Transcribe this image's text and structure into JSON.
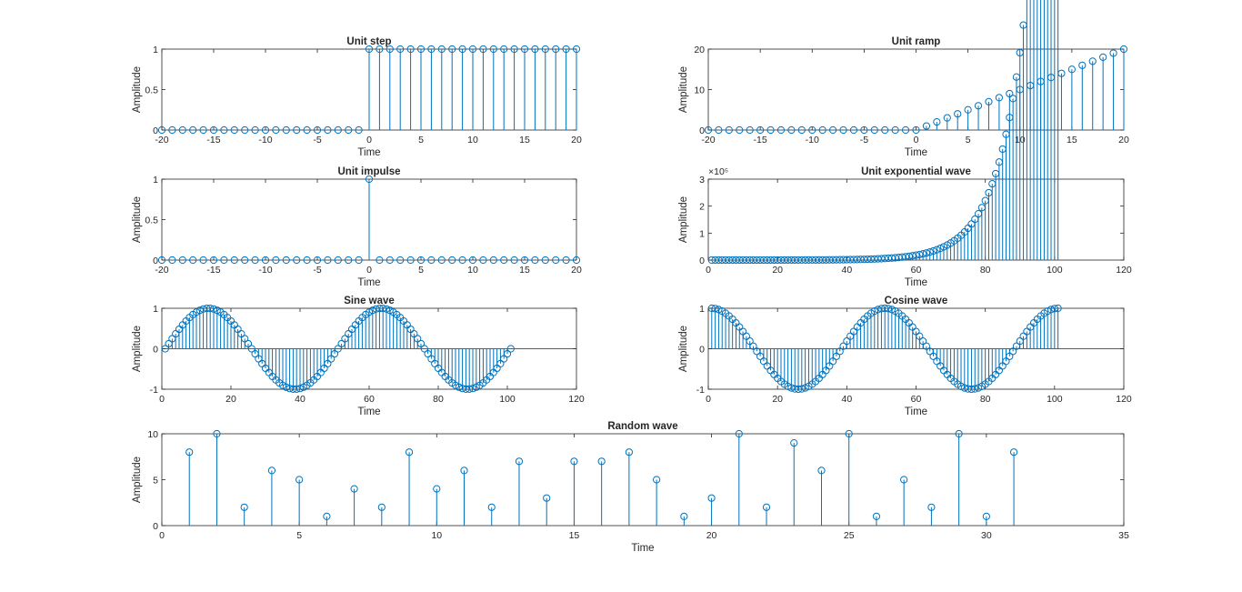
{
  "figure": {
    "background": "#ffffff"
  },
  "colors": {
    "stem": "#0072bd",
    "axis": "#262626"
  },
  "chart_data": [
    {
      "id": "step",
      "type": "stem",
      "title": "Unit step",
      "xlabel": "Time",
      "ylabel": "Amplitude",
      "xlim": [
        -20,
        20
      ],
      "ylim": [
        0,
        1
      ],
      "xticks": [
        -20,
        -15,
        -10,
        -5,
        0,
        5,
        10,
        15,
        20
      ],
      "xtick_labels": [
        "-20",
        "-15",
        "-10",
        "-5",
        "0",
        "5",
        "10",
        "15",
        "20"
      ],
      "yticks": [
        0,
        0.5,
        1
      ],
      "ytick_labels": [
        "0",
        "0.5",
        "1"
      ],
      "x": [
        -20,
        -19,
        -18,
        -17,
        -16,
        -15,
        -14,
        -13,
        -12,
        -11,
        -10,
        -9,
        -8,
        -7,
        -6,
        -5,
        -4,
        -3,
        -2,
        -1,
        0,
        1,
        2,
        3,
        4,
        5,
        6,
        7,
        8,
        9,
        10,
        11,
        12,
        13,
        14,
        15,
        16,
        17,
        18,
        19,
        20
      ],
      "y": [
        0,
        0,
        0,
        0,
        0,
        0,
        0,
        0,
        0,
        0,
        0,
        0,
        0,
        0,
        0,
        0,
        0,
        0,
        0,
        0,
        1,
        1,
        1,
        1,
        1,
        1,
        1,
        1,
        1,
        1,
        1,
        1,
        1,
        1,
        1,
        1,
        1,
        1,
        1,
        1,
        1
      ]
    },
    {
      "id": "ramp",
      "type": "stem",
      "title": "Unit ramp",
      "xlabel": "Time",
      "ylabel": "Amplitude",
      "xlim": [
        -20,
        20
      ],
      "ylim": [
        0,
        20
      ],
      "xticks": [
        -20,
        -15,
        -10,
        -5,
        0,
        5,
        10,
        15,
        20
      ],
      "xtick_labels": [
        "-20",
        "-15",
        "-10",
        "-5",
        "0",
        "5",
        "10",
        "15",
        "20"
      ],
      "yticks": [
        0,
        10,
        20
      ],
      "ytick_labels": [
        "0",
        "10",
        "20"
      ],
      "x": [
        -20,
        -19,
        -18,
        -17,
        -16,
        -15,
        -14,
        -13,
        -12,
        -11,
        -10,
        -9,
        -8,
        -7,
        -6,
        -5,
        -4,
        -3,
        -2,
        -1,
        0,
        1,
        2,
        3,
        4,
        5,
        6,
        7,
        8,
        9,
        10,
        11,
        12,
        13,
        14,
        15,
        16,
        17,
        18,
        19,
        20
      ],
      "y": [
        0,
        0,
        0,
        0,
        0,
        0,
        0,
        0,
        0,
        0,
        0,
        0,
        0,
        0,
        0,
        0,
        0,
        0,
        0,
        0,
        0,
        1,
        2,
        3,
        4,
        5,
        6,
        7,
        8,
        9,
        10,
        11,
        12,
        13,
        14,
        15,
        16,
        17,
        18,
        19,
        20
      ]
    },
    {
      "id": "impulse",
      "type": "stem",
      "title": "Unit impulse",
      "xlabel": "Time",
      "ylabel": "Amplitude",
      "xlim": [
        -20,
        20
      ],
      "ylim": [
        0,
        1
      ],
      "xticks": [
        -20,
        -15,
        -10,
        -5,
        0,
        5,
        10,
        15,
        20
      ],
      "xtick_labels": [
        "-20",
        "-15",
        "-10",
        "-5",
        "0",
        "5",
        "10",
        "15",
        "20"
      ],
      "yticks": [
        0,
        0.5,
        1
      ],
      "ytick_labels": [
        "0",
        "0.5",
        "1"
      ],
      "x": [
        -20,
        -19,
        -18,
        -17,
        -16,
        -15,
        -14,
        -13,
        -12,
        -11,
        -10,
        -9,
        -8,
        -7,
        -6,
        -5,
        -4,
        -3,
        -2,
        -1,
        0,
        1,
        2,
        3,
        4,
        5,
        6,
        7,
        8,
        9,
        10,
        11,
        12,
        13,
        14,
        15,
        16,
        17,
        18,
        19,
        20
      ],
      "y": [
        0,
        0,
        0,
        0,
        0,
        0,
        0,
        0,
        0,
        0,
        0,
        0,
        0,
        0,
        0,
        0,
        0,
        0,
        0,
        0,
        1,
        0,
        0,
        0,
        0,
        0,
        0,
        0,
        0,
        0,
        0,
        0,
        0,
        0,
        0,
        0,
        0,
        0,
        0,
        0,
        0
      ]
    },
    {
      "id": "exponential",
      "type": "stem",
      "title": "Unit exponential wave",
      "xlabel": "Time",
      "ylabel": "Amplitude",
      "xlim": [
        0,
        120
      ],
      "ylim": [
        0,
        3
      ],
      "exponent_label": "×10⁵",
      "xticks": [
        0,
        20,
        40,
        60,
        80,
        100,
        120
      ],
      "xtick_labels": [
        "0",
        "20",
        "40",
        "60",
        "80",
        "100",
        "120"
      ],
      "yticks": [
        0,
        1,
        2,
        3
      ],
      "ytick_labels": [
        "0",
        "1",
        "2",
        "3"
      ],
      "x_range": [
        1,
        101
      ],
      "y_model": {
        "form": "a*exp(b*x)",
        "a": 0.0001,
        "b": 0.125,
        "unit": "1e5"
      }
    },
    {
      "id": "sine",
      "type": "stem",
      "title": "Sine wave",
      "xlabel": "Time",
      "ylabel": "Amplitude",
      "xlim": [
        0,
        120
      ],
      "ylim": [
        -1,
        1
      ],
      "xticks": [
        0,
        20,
        40,
        60,
        80,
        100,
        120
      ],
      "xtick_labels": [
        "0",
        "20",
        "40",
        "60",
        "80",
        "100",
        "120"
      ],
      "yticks": [
        -1,
        0,
        1
      ],
      "ytick_labels": [
        "-1",
        "0",
        "1"
      ],
      "baseline": 0,
      "x_range": [
        1,
        101
      ],
      "y_model": {
        "form": "sin(2*pi*(x-1)/50)"
      }
    },
    {
      "id": "cosine",
      "type": "stem",
      "title": "Cosine wave",
      "xlabel": "Time",
      "ylabel": "Amplitude",
      "xlim": [
        0,
        120
      ],
      "ylim": [
        -1,
        1
      ],
      "xticks": [
        0,
        20,
        40,
        60,
        80,
        100,
        120
      ],
      "xtick_labels": [
        "0",
        "20",
        "40",
        "60",
        "80",
        "100",
        "120"
      ],
      "yticks": [
        -1,
        0,
        1
      ],
      "ytick_labels": [
        "-1",
        "0",
        "1"
      ],
      "baseline": 0,
      "x_range": [
        1,
        101
      ],
      "y_model": {
        "form": "cos(2*pi*(x-1)/50)"
      }
    },
    {
      "id": "random",
      "type": "stem",
      "title": "Random wave",
      "xlabel": "Time",
      "ylabel": "Amplitude",
      "xlim": [
        0,
        35
      ],
      "ylim": [
        0,
        10
      ],
      "xticks": [
        0,
        5,
        10,
        15,
        20,
        25,
        30,
        35
      ],
      "xtick_labels": [
        "0",
        "5",
        "10",
        "15",
        "20",
        "25",
        "30",
        "35"
      ],
      "yticks": [
        0,
        5,
        10
      ],
      "ytick_labels": [
        "0",
        "5",
        "10"
      ],
      "x": [
        1,
        2,
        3,
        4,
        5,
        6,
        7,
        8,
        9,
        10,
        11,
        12,
        13,
        14,
        15,
        16,
        17,
        18,
        19,
        20,
        21,
        22,
        23,
        24,
        25,
        26,
        27,
        28,
        29,
        30,
        31
      ],
      "y": [
        8,
        10,
        2,
        6,
        5,
        1,
        4,
        2,
        8,
        4,
        6,
        2,
        7,
        3,
        7,
        7,
        8,
        5,
        1,
        3,
        10,
        2,
        9,
        6,
        10,
        1,
        5,
        2,
        10,
        1,
        8
      ]
    }
  ]
}
